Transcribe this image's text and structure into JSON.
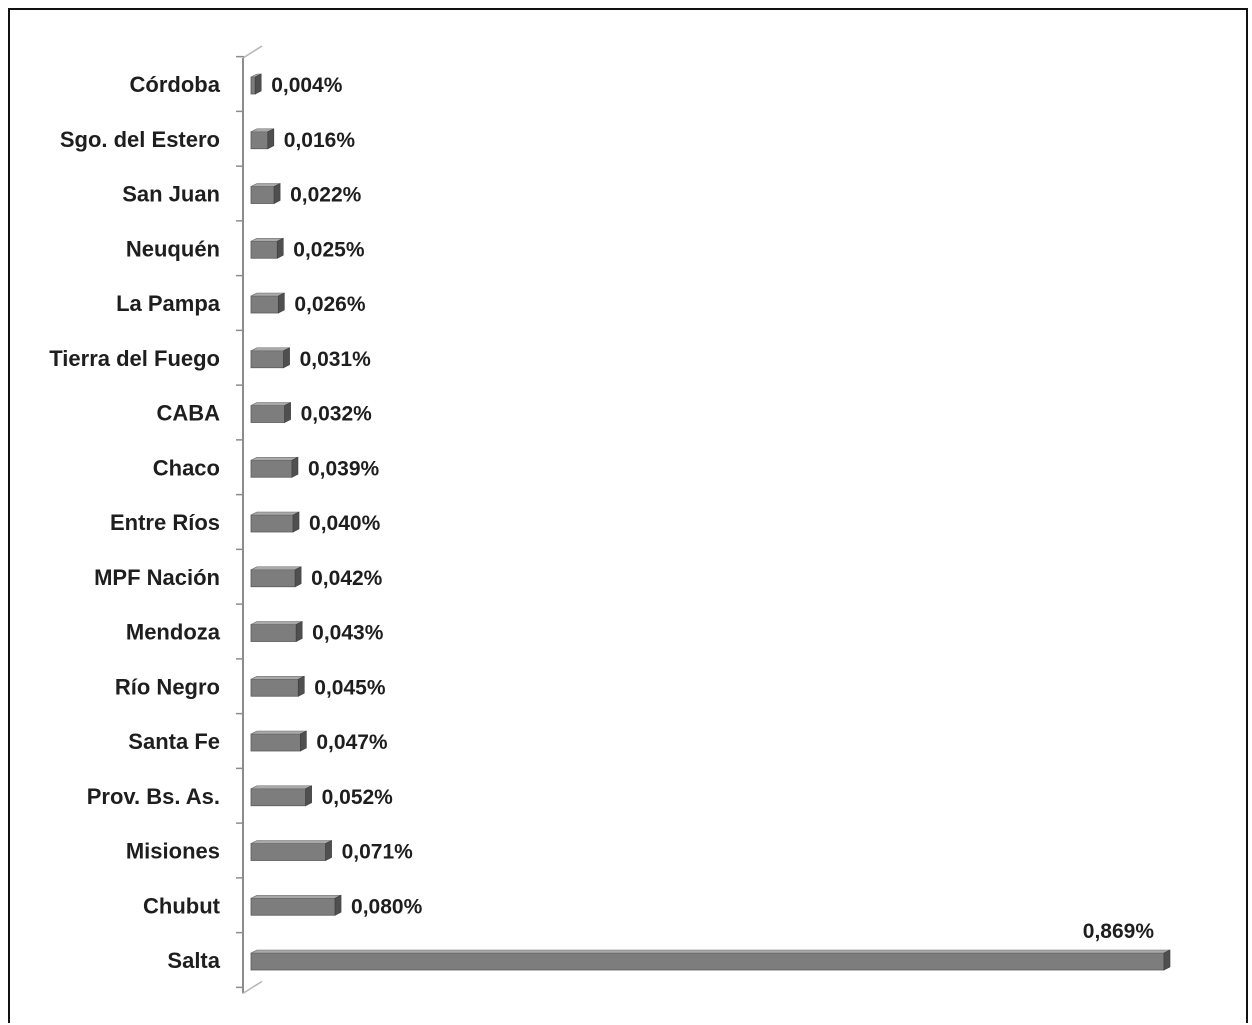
{
  "chart_data": {
    "type": "bar",
    "orientation": "horizontal",
    "title": "",
    "xlabel": "",
    "ylabel": "",
    "categories": [
      "Córdoba",
      "Sgo. del Estero",
      "San Juan",
      "Neuquén",
      "La Pampa",
      "Tierra del Fuego",
      "CABA",
      "Chaco",
      "Entre Ríos",
      "MPF Nación",
      "Mendoza",
      "Río Negro",
      "Santa Fe",
      "Prov. Bs. As.",
      "Misiones",
      "Chubut",
      "Salta"
    ],
    "values": [
      0.004,
      0.016,
      0.022,
      0.025,
      0.026,
      0.031,
      0.032,
      0.039,
      0.04,
      0.042,
      0.043,
      0.045,
      0.047,
      0.052,
      0.071,
      0.08,
      0.869
    ],
    "value_labels": [
      "0,004%",
      "0,016%",
      "0,022%",
      "0,025%",
      "0,026%",
      "0,031%",
      "0,032%",
      "0,039%",
      "0,040%",
      "0,042%",
      "0,043%",
      "0,045%",
      "0,047%",
      "0,052%",
      "0,071%",
      "0,080%",
      "0,869%"
    ],
    "xlim": [
      0,
      0.869
    ],
    "grid": false,
    "legend": "none",
    "bar_color": "#7d7d7d",
    "bar_top_color": "#a9a9a9",
    "bar_side_color": "#4f4f4f",
    "axis_color": "#8c8c8c",
    "text_color": "#1e1e1e"
  }
}
